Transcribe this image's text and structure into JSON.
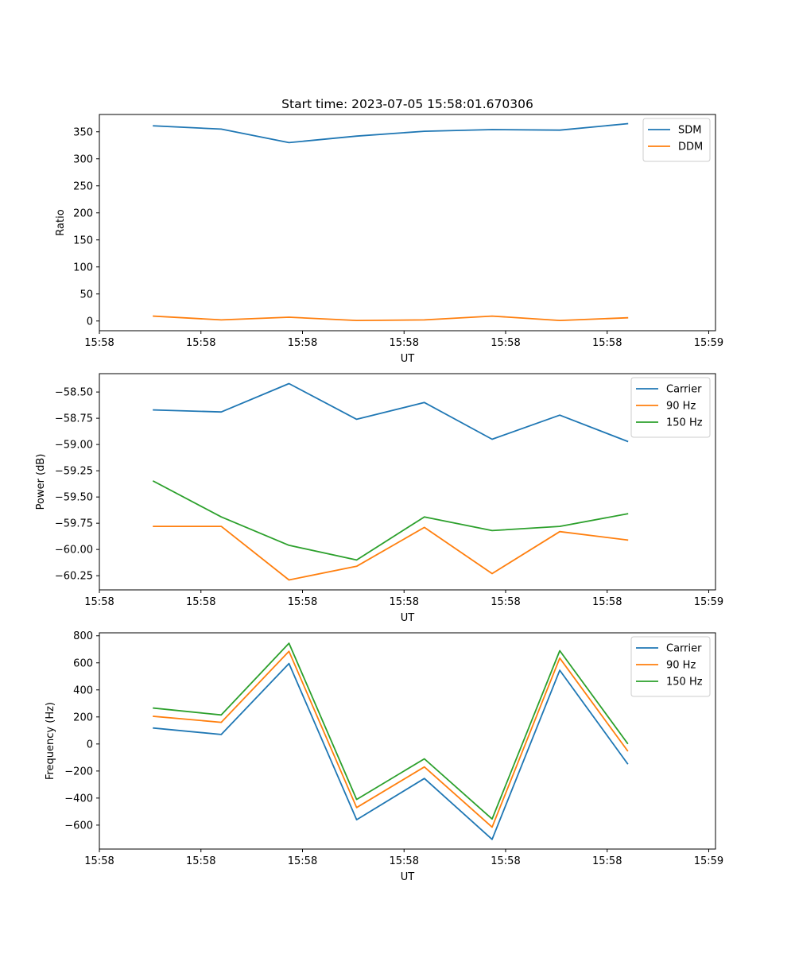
{
  "chart_data": [
    {
      "type": "line",
      "title": "Start time: 2023-07-05 15:58:01.670306",
      "xlabel": "UT",
      "ylabel": "Ratio",
      "x": [
        1,
        2,
        3,
        4,
        5,
        6,
        7,
        8
      ],
      "xlim": [
        0.2,
        9.3
      ],
      "x_ticks": [
        0.2,
        1.7,
        3.2,
        4.7,
        6.2,
        7.7,
        9.2
      ],
      "x_tick_labels": [
        "15:58",
        "15:58",
        "15:58",
        "15:58",
        "15:58",
        "15:58",
        "15:59"
      ],
      "ylim": [
        -18,
        382
      ],
      "y_ticks": [
        0,
        50,
        100,
        150,
        200,
        250,
        300,
        350
      ],
      "y_tick_labels": [
        "0",
        "50",
        "100",
        "150",
        "200",
        "250",
        "300",
        "350"
      ],
      "legend_position": "top-right",
      "series": [
        {
          "name": "SDM",
          "color": "#1f77b4",
          "values": [
            361,
            355,
            330,
            342,
            351,
            354,
            353,
            365
          ]
        },
        {
          "name": "DDM",
          "color": "#ff7f0e",
          "values": [
            9,
            2,
            7,
            1,
            2,
            9,
            1,
            6
          ]
        }
      ]
    },
    {
      "type": "line",
      "title": "",
      "xlabel": "UT",
      "ylabel": "Power (dB)",
      "x": [
        1,
        2,
        3,
        4,
        5,
        6,
        7,
        8
      ],
      "xlim": [
        0.2,
        9.3
      ],
      "x_ticks": [
        0.2,
        1.7,
        3.2,
        4.7,
        6.2,
        7.7,
        9.2
      ],
      "x_tick_labels": [
        "15:58",
        "15:58",
        "15:58",
        "15:58",
        "15:58",
        "15:58",
        "15:59"
      ],
      "ylim": [
        -60.385,
        -58.325
      ],
      "y_ticks": [
        -60.25,
        -60.0,
        -59.75,
        -59.5,
        -59.25,
        -59.0,
        -58.75,
        -58.5
      ],
      "y_tick_labels": [
        "−60.25",
        "−60.00",
        "−59.75",
        "−59.50",
        "−59.25",
        "−59.00",
        "−58.75",
        "−58.50"
      ],
      "legend_position": "top-right",
      "series": [
        {
          "name": "Carrier",
          "color": "#1f77b4",
          "values": [
            -58.67,
            -58.69,
            -58.42,
            -58.76,
            -58.6,
            -58.95,
            -58.72,
            -58.97
          ]
        },
        {
          "name": "90 Hz",
          "color": "#ff7f0e",
          "values": [
            -59.78,
            -59.78,
            -60.29,
            -60.16,
            -59.79,
            -60.23,
            -59.83,
            -59.91
          ]
        },
        {
          "name": "150 Hz",
          "color": "#2ca02c",
          "values": [
            -59.35,
            -59.69,
            -59.96,
            -60.1,
            -59.69,
            -59.82,
            -59.78,
            -59.66
          ]
        }
      ]
    },
    {
      "type": "line",
      "title": "",
      "xlabel": "UT",
      "ylabel": "Frequency (Hz)",
      "x": [
        1,
        2,
        3,
        4,
        5,
        6,
        7,
        8
      ],
      "xlim": [
        0.2,
        9.3
      ],
      "x_ticks": [
        0.2,
        1.7,
        3.2,
        4.7,
        6.2,
        7.7,
        9.2
      ],
      "x_tick_labels": [
        "15:58",
        "15:58",
        "15:58",
        "15:58",
        "15:58",
        "15:58",
        "15:59"
      ],
      "ylim": [
        -777,
        822
      ],
      "y_ticks": [
        -600,
        -400,
        -200,
        0,
        200,
        400,
        600,
        800
      ],
      "y_tick_labels": [
        "−600",
        "−400",
        "−200",
        "0",
        "200",
        "400",
        "600",
        "800"
      ],
      "legend_position": "top-right",
      "series": [
        {
          "name": "Carrier",
          "color": "#1f77b4",
          "values": [
            118,
            70,
            595,
            -560,
            -255,
            -705,
            545,
            -145
          ]
        },
        {
          "name": "90 Hz",
          "color": "#ff7f0e",
          "values": [
            205,
            160,
            685,
            -470,
            -170,
            -615,
            635,
            -50
          ]
        },
        {
          "name": "150 Hz",
          "color": "#2ca02c",
          "values": [
            265,
            215,
            745,
            -410,
            -110,
            -555,
            690,
            5
          ]
        }
      ]
    }
  ]
}
